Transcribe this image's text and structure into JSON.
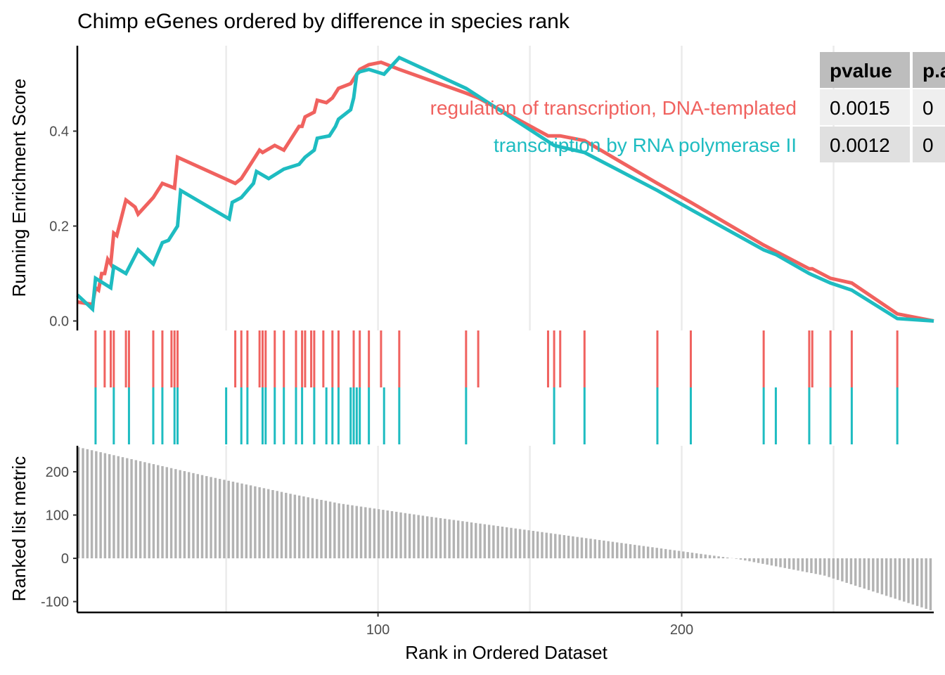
{
  "chart_data": {
    "type": "line",
    "title": "Chimp eGenes ordered by difference in species rank",
    "xlabel": "Rank in Ordered Dataset",
    "xlim": [
      1,
      283
    ],
    "x_ticks": [
      100,
      200
    ],
    "x_tick_labels": [
      "100",
      "200"
    ],
    "grid_x": [
      50,
      100,
      150,
      200,
      250
    ],
    "enrichment_panel": {
      "ylabel": "Running Enrichment Score",
      "ylim": [
        -0.02,
        0.58
      ],
      "y_ticks": [
        0.0,
        0.2,
        0.4
      ],
      "y_tick_labels": [
        "0.0",
        "0.2",
        "0.4"
      ],
      "series": [
        {
          "name": "regulation of transcription, DNA-templated",
          "color": "#F0625F",
          "x": [
            1,
            6,
            7,
            8,
            9,
            10,
            11,
            12,
            13,
            14,
            17,
            20,
            21,
            26,
            29,
            33,
            34,
            53,
            55,
            57,
            61,
            62,
            66,
            69,
            74,
            75,
            76,
            79,
            80,
            83,
            85,
            86,
            87,
            91,
            94,
            97,
            101,
            107,
            129,
            133,
            156,
            158,
            160,
            168,
            192,
            203,
            227,
            242,
            243,
            249,
            256,
            271,
            283
          ],
          "y": [
            0.04,
            0.035,
            0.07,
            0.065,
            0.1,
            0.1,
            0.13,
            0.12,
            0.185,
            0.18,
            0.255,
            0.24,
            0.225,
            0.26,
            0.29,
            0.28,
            0.345,
            0.29,
            0.3,
            0.32,
            0.36,
            0.355,
            0.37,
            0.36,
            0.41,
            0.41,
            0.43,
            0.44,
            0.465,
            0.46,
            0.47,
            0.48,
            0.49,
            0.5,
            0.53,
            0.54,
            0.545,
            0.53,
            0.48,
            0.47,
            0.39,
            0.39,
            0.39,
            0.38,
            0.29,
            0.25,
            0.16,
            0.11,
            0.11,
            0.09,
            0.08,
            0.015,
            0.0
          ]
        },
        {
          "name": "transcription by RNA polymerase II",
          "color": "#1EBCC1",
          "x": [
            1,
            6,
            7,
            12,
            13,
            17,
            21,
            26,
            29,
            31,
            34,
            35,
            51,
            52,
            55,
            59,
            60,
            64,
            69,
            74,
            76,
            79,
            80,
            84,
            86,
            87,
            91,
            92,
            93,
            94,
            97,
            102,
            107,
            129,
            158,
            168,
            192,
            203,
            227,
            231,
            242,
            249,
            256,
            271,
            283
          ],
          "y": [
            0.055,
            0.025,
            0.09,
            0.07,
            0.115,
            0.1,
            0.15,
            0.12,
            0.165,
            0.17,
            0.2,
            0.275,
            0.215,
            0.25,
            0.26,
            0.29,
            0.315,
            0.3,
            0.32,
            0.33,
            0.345,
            0.36,
            0.385,
            0.39,
            0.41,
            0.425,
            0.445,
            0.47,
            0.52,
            0.525,
            0.53,
            0.52,
            0.555,
            0.49,
            0.37,
            0.355,
            0.275,
            0.235,
            0.15,
            0.14,
            0.1,
            0.08,
            0.065,
            0.005,
            0.0
          ]
        }
      ],
      "table": {
        "columns": [
          "pvalue",
          "p.a"
        ],
        "rows": [
          [
            "0.0015",
            "0"
          ],
          [
            "0.0012",
            "0"
          ]
        ]
      }
    },
    "hits_panel": {
      "series": [
        {
          "name": "regulation of transcription, DNA-templated",
          "color": "#F0625F",
          "positions": [
            7,
            10,
            12,
            13,
            17,
            18,
            26,
            29,
            32,
            33,
            34,
            53,
            55,
            57,
            61,
            62,
            63,
            66,
            69,
            73,
            75,
            76,
            78,
            79,
            82,
            85,
            87,
            92,
            94,
            97,
            101,
            107,
            129,
            133,
            156,
            158,
            160,
            168,
            192,
            203,
            227,
            242,
            243,
            249,
            256,
            271
          ]
        },
        {
          "name": "transcription by RNA polymerase II",
          "color": "#1EBCC1",
          "positions": [
            7,
            13,
            18,
            26,
            29,
            33,
            34,
            50,
            55,
            57,
            62,
            63,
            66,
            69,
            73,
            75,
            79,
            83,
            85,
            87,
            91,
            92,
            93,
            94,
            97,
            102,
            107,
            129,
            158,
            168,
            192,
            203,
            227,
            231,
            242,
            249,
            256,
            271
          ]
        }
      ]
    },
    "ranked_panel": {
      "ylabel": "Ranked list metric",
      "ylim": [
        -125,
        260
      ],
      "y_ticks": [
        -100,
        0,
        100,
        200
      ],
      "y_tick_labels": [
        "-100",
        "0",
        "100",
        "200"
      ],
      "bar_color": "#B3B3B3",
      "values": [
        256.7,
        254.4,
        252.1,
        249.8,
        247.5,
        245.2,
        242.9,
        240.6,
        238.3,
        236.0,
        233.7,
        231.4,
        229.1,
        226.8,
        224.5,
        222.2,
        219.9,
        217.6,
        215.3,
        213.0,
        210.7,
        208.4,
        206.1,
        203.8,
        201.5,
        199.2,
        196.9,
        194.6,
        192.3,
        190.0,
        187.8,
        185.7,
        183.5,
        181.4,
        179.2,
        177.1,
        174.9,
        172.8,
        170.6,
        168.5,
        166.3,
        164.2,
        162.0,
        159.9,
        157.7,
        155.6,
        153.4,
        151.3,
        149.1,
        147.0,
        145.0,
        143.0,
        141.0,
        139.0,
        137.0,
        135.0,
        133.0,
        131.0,
        129.0,
        127.0,
        125.5,
        124.0,
        122.5,
        121.0,
        119.5,
        118.0,
        116.5,
        115.0,
        113.5,
        112.0,
        110.5,
        109.0,
        107.5,
        106.0,
        104.5,
        103.0,
        101.5,
        100.0,
        98.5,
        97.0,
        95.6,
        94.2,
        92.8,
        91.4,
        90.0,
        88.6,
        87.2,
        85.8,
        84.4,
        83.0,
        81.6,
        80.2,
        78.8,
        77.4,
        76.0,
        74.6,
        73.2,
        71.8,
        70.4,
        69.0,
        67.6,
        66.2,
        64.8,
        63.4,
        62.0,
        60.6,
        59.2,
        57.8,
        56.4,
        55.0,
        53.6,
        52.2,
        50.8,
        49.4,
        48.0,
        46.6,
        45.2,
        43.8,
        42.4,
        41.0,
        39.6,
        38.2,
        36.8,
        35.4,
        34.0,
        32.6,
        31.2,
        29.8,
        28.4,
        27.0,
        25.6,
        24.2,
        22.8,
        21.4,
        20.0,
        18.6,
        17.2,
        15.8,
        14.4,
        13.0,
        11.6,
        10.2,
        8.8,
        7.4,
        6.0,
        4.6,
        3.2,
        1.8,
        0.4,
        -1.0,
        -2.9,
        -4.9,
        -6.8,
        -8.8,
        -10.7,
        -12.7,
        -14.6,
        -16.6,
        -18.5,
        -20.5,
        -22.4,
        -24.4,
        -26.3,
        -28.3,
        -30.2,
        -32.2,
        -34.1,
        -36.1,
        -38.0,
        -40.0,
        -43.3,
        -46.7,
        -50.0,
        -53.3,
        -56.7,
        -60.0,
        -63.3,
        -66.7,
        -70.0,
        -73.3,
        -76.7,
        -80.0,
        -83.3,
        -86.7,
        -90.0,
        -93.3,
        -96.7,
        -100.0,
        -103.3,
        -106.7,
        -110.0,
        -113.3,
        -116.7,
        -120.0
      ]
    }
  }
}
